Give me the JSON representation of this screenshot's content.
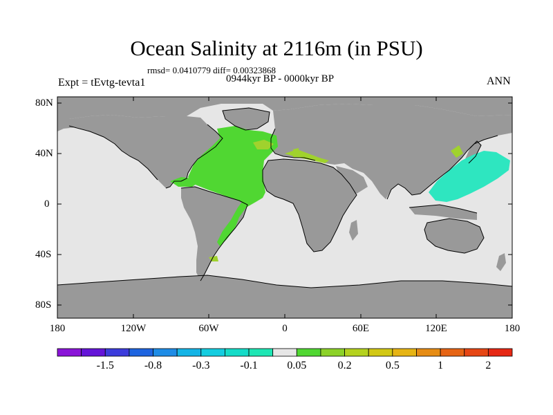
{
  "title": "Ocean Salinity at 2116m (in PSU)",
  "stats": "rmsd= 0.0410779 diff= 0.00323868",
  "period": "0944kyr BP - 0000kyr BP",
  "experiment": "Expt = tEvtg-tevta1",
  "season": "ANN",
  "y_ticks": [
    "80N",
    "40N",
    "0",
    "40S",
    "80S"
  ],
  "x_ticks": [
    "180",
    "120W",
    "60W",
    "0",
    "60E",
    "120E",
    "180"
  ],
  "colorbar": {
    "colors": [
      "#8a14d8",
      "#6414d8",
      "#3c3cdc",
      "#1e64e0",
      "#1e8ce6",
      "#14b4e6",
      "#14cde0",
      "#14dcc8",
      "#1ee6b4",
      "#e6e6e6",
      "#50d732",
      "#8cd228",
      "#b4d21e",
      "#d2c814",
      "#e6b414",
      "#e68c14",
      "#e66414",
      "#e64614",
      "#e62814"
    ],
    "labels": [
      "-1.5",
      "-0.8",
      "-0.3",
      "-0.1",
      "0.05",
      "0.2",
      "0.5",
      "1",
      "2"
    ]
  },
  "colors": {
    "land": "#999999",
    "no_change": "#e6e6e6",
    "atlantic_green": "#50d732",
    "yellow_green": "#a0d22d",
    "pacific_teal": "#2ee6c0"
  }
}
